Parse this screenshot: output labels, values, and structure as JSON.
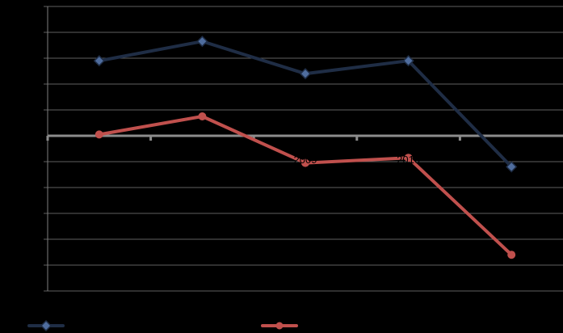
{
  "chart_data": {
    "type": "line",
    "title": "",
    "xlabel": "",
    "ylabel": "",
    "categories": [
      "",
      "",
      "2009",
      "2010",
      ""
    ],
    "ylim": [
      -6,
      5
    ],
    "y_tick_step": 1,
    "grid": true,
    "legend_position": "bottom",
    "series": [
      {
        "values": [
          2.9,
          3.65,
          2.4,
          2.9,
          -1.2
        ],
        "color": "#1f2d45",
        "marker": "diamond",
        "marker_fill": "#4f6d9e"
      },
      {
        "values": [
          0.05,
          0.75,
          -1.05,
          -0.85,
          -4.6
        ],
        "color": "#c0504d",
        "marker": "circle",
        "marker_fill": "#c0504d"
      }
    ]
  }
}
